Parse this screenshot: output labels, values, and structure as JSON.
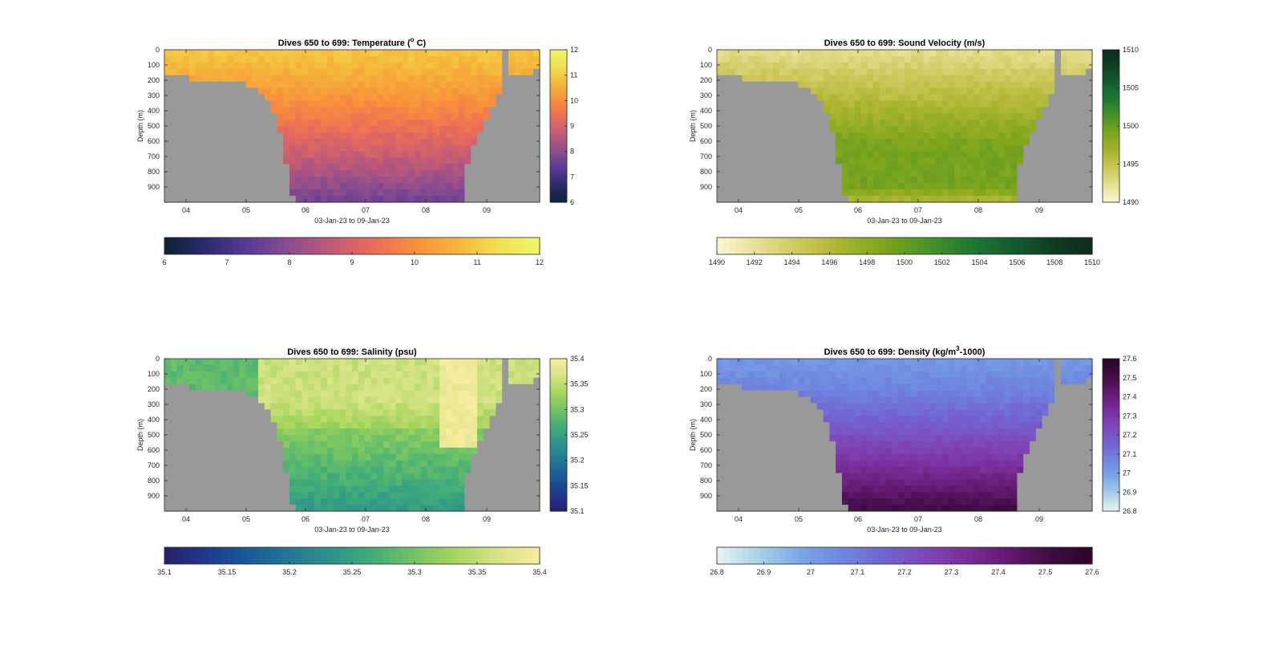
{
  "figure": {
    "panels": [
      {
        "id": "temperature",
        "title_main": "Dives 650 to 699: Temperature (",
        "title_sup": "o",
        "title_end": " C)",
        "ylabel": "Depth (m)",
        "xlabel": "03-Jan-23 to 09-Jan-23",
        "yticks": [
          "0",
          "100",
          "200",
          "300",
          "400",
          "500",
          "600",
          "700",
          "800",
          "900"
        ],
        "xticks": [
          "04",
          "05",
          "06",
          "07",
          "08",
          "09"
        ],
        "cbar_right_ticks": [
          "12",
          "11",
          "10",
          "9",
          "8",
          "7",
          "6"
        ],
        "cbar_bottom_ticks": [
          "6",
          "7",
          "8",
          "9",
          "10",
          "11",
          "12"
        ],
        "colormap": [
          "#0b2233",
          "#2c2a6e",
          "#5a3a96",
          "#8c4d8e",
          "#c05a78",
          "#ea6c5a",
          "#f88f3c",
          "#f5b63a",
          "#f2df52",
          "#f0f76a"
        ]
      },
      {
        "id": "sound-velocity",
        "title_main": "Dives 650 to 699: Sound Velocity (m/s)",
        "title_sup": "",
        "title_end": "",
        "ylabel": "Depth (m)",
        "xlabel": "03-Jan-23 to 09-Jan-23",
        "yticks": [
          "0",
          "100",
          "200",
          "300",
          "400",
          "500",
          "600",
          "700",
          "800",
          "900"
        ],
        "xticks": [
          "04",
          "05",
          "06",
          "07",
          "08",
          "09"
        ],
        "cbar_right_ticks": [
          "1510",
          "1505",
          "1500",
          "1495",
          "1490"
        ],
        "cbar_bottom_ticks": [
          "1490",
          "1492",
          "1494",
          "1496",
          "1498",
          "1500",
          "1502",
          "1504",
          "1506",
          "1508",
          "1510"
        ],
        "colormap": [
          "#fcf7d2",
          "#e7df93",
          "#cdc75a",
          "#a9b42e",
          "#7ea51d",
          "#4c9426",
          "#217a31",
          "#135f2f",
          "#103f25",
          "#0d2a1b"
        ]
      },
      {
        "id": "salinity",
        "title_main": "Dives 650 to 699: Salinity (psu)",
        "title_sup": "",
        "title_end": "",
        "ylabel": "Depth (m)",
        "xlabel": "03-Jan-23 to 09-Jan-23",
        "yticks": [
          "0",
          "100",
          "200",
          "300",
          "400",
          "500",
          "600",
          "700",
          "800",
          "900"
        ],
        "xticks": [
          "04",
          "05",
          "06",
          "07",
          "08",
          "09"
        ],
        "cbar_right_ticks": [
          "35.4",
          "35.35",
          "35.3",
          "35.25",
          "35.2",
          "35.15",
          "35.1"
        ],
        "cbar_bottom_ticks": [
          "35.1",
          "35.15",
          "35.2",
          "35.25",
          "35.3",
          "35.35",
          "35.4"
        ],
        "colormap": [
          "#281e6e",
          "#1e3a8c",
          "#185a98",
          "#237795",
          "#2e938c",
          "#41ad78",
          "#73c465",
          "#a8d65d",
          "#d8e487",
          "#f8eca0"
        ]
      },
      {
        "id": "density",
        "title_main": "Dives 650 to 699: Density (kg/m",
        "title_sup": "3",
        "title_end": "-1000)",
        "ylabel": "Depth (m)",
        "xlabel": "03-Jan-23 to 09-Jan-23",
        "yticks": [
          "0",
          "100",
          "200",
          "300",
          "400",
          "500",
          "600",
          "700",
          "800",
          "900"
        ],
        "xticks": [
          "04",
          "05",
          "06",
          "07",
          "08",
          "09"
        ],
        "cbar_right_ticks": [
          "27.6",
          "27.5",
          "27.4",
          "27.3",
          "27.2",
          "27.1",
          "27",
          "26.9",
          "26.8"
        ],
        "cbar_bottom_ticks": [
          "26.8",
          "26.9",
          "27",
          "27.1",
          "27.2",
          "27.3",
          "27.4",
          "27.5",
          "27.6"
        ],
        "colormap": [
          "#e9f3f4",
          "#a9d2e6",
          "#79a8e6",
          "#6f87e0",
          "#7264d0",
          "#7f46b8",
          "#7a2d9a",
          "#62196f",
          "#3e0c40",
          "#2a0628"
        ]
      }
    ]
  },
  "chart_data": [
    {
      "type": "heatmap",
      "title": "Dives 650 to 699: Temperature (° C)",
      "xlabel": "03-Jan-23 to 09-Jan-23",
      "ylabel": "Depth (m)",
      "x_range": [
        "2023-01-03T15:00",
        "2023-01-09T21:00"
      ],
      "y_range": [
        0,
        1000
      ],
      "y_reversed": true,
      "x_ticks": [
        "04",
        "05",
        "06",
        "07",
        "08",
        "09"
      ],
      "y_ticks": [
        0,
        100,
        200,
        300,
        400,
        500,
        600,
        700,
        800,
        900
      ],
      "colorbar_range": [
        6,
        12
      ],
      "colorbar_ticks": [
        6,
        7,
        8,
        9,
        10,
        11,
        12
      ],
      "surface_value": 10.9,
      "bottom_value": 7.2,
      "missing_color": "#999999",
      "no_data_depth_by_day": {
        "04": 200,
        "05": 300,
        "06": 950,
        "07": 1000,
        "08": 1000,
        "09": 200
      }
    },
    {
      "type": "heatmap",
      "title": "Dives 650 to 699: Sound Velocity (m/s)",
      "xlabel": "03-Jan-23 to 09-Jan-23",
      "ylabel": "Depth (m)",
      "x_range": [
        "2023-01-03T15:00",
        "2023-01-09T21:00"
      ],
      "y_range": [
        0,
        1000
      ],
      "y_reversed": true,
      "x_ticks": [
        "04",
        "05",
        "06",
        "07",
        "08",
        "09"
      ],
      "y_ticks": [
        0,
        100,
        200,
        300,
        400,
        500,
        600,
        700,
        800,
        900
      ],
      "colorbar_range": [
        1490,
        1510
      ],
      "colorbar_ticks": [
        1490,
        1492,
        1494,
        1496,
        1498,
        1500,
        1502,
        1504,
        1506,
        1508,
        1510
      ],
      "surface_value": 1492.5,
      "bottom_value": 1497.5,
      "missing_color": "#999999"
    },
    {
      "type": "heatmap",
      "title": "Dives 650 to 699: Salinity (psu)",
      "xlabel": "03-Jan-23 to 09-Jan-23",
      "ylabel": "Depth (m)",
      "x_range": [
        "2023-01-03T15:00",
        "2023-01-09T21:00"
      ],
      "y_range": [
        0,
        1000
      ],
      "y_reversed": true,
      "x_ticks": [
        "04",
        "05",
        "06",
        "07",
        "08",
        "09"
      ],
      "y_ticks": [
        0,
        100,
        200,
        300,
        400,
        500,
        600,
        700,
        800,
        900
      ],
      "colorbar_range": [
        35.1,
        35.4
      ],
      "colorbar_ticks": [
        35.1,
        35.15,
        35.2,
        35.25,
        35.3,
        35.35,
        35.4
      ],
      "surface_value": 35.36,
      "bottom_value": 35.3,
      "missing_color": "#999999"
    },
    {
      "type": "heatmap",
      "title": "Dives 650 to 699: Density (kg/m³-1000)",
      "xlabel": "03-Jan-23 to 09-Jan-23",
      "ylabel": "Depth (m)",
      "x_range": [
        "2023-01-03T15:00",
        "2023-01-09T21:00"
      ],
      "y_range": [
        0,
        1000
      ],
      "y_reversed": true,
      "x_ticks": [
        "04",
        "05",
        "06",
        "07",
        "08",
        "09"
      ],
      "y_ticks": [
        0,
        100,
        200,
        300,
        400,
        500,
        600,
        700,
        800,
        900
      ],
      "colorbar_range": [
        26.8,
        27.6
      ],
      "colorbar_ticks": [
        26.8,
        26.9,
        27,
        27.1,
        27.2,
        27.3,
        27.4,
        27.5,
        27.6
      ],
      "surface_value": 27.05,
      "bottom_value": 27.55,
      "missing_color": "#999999"
    }
  ]
}
